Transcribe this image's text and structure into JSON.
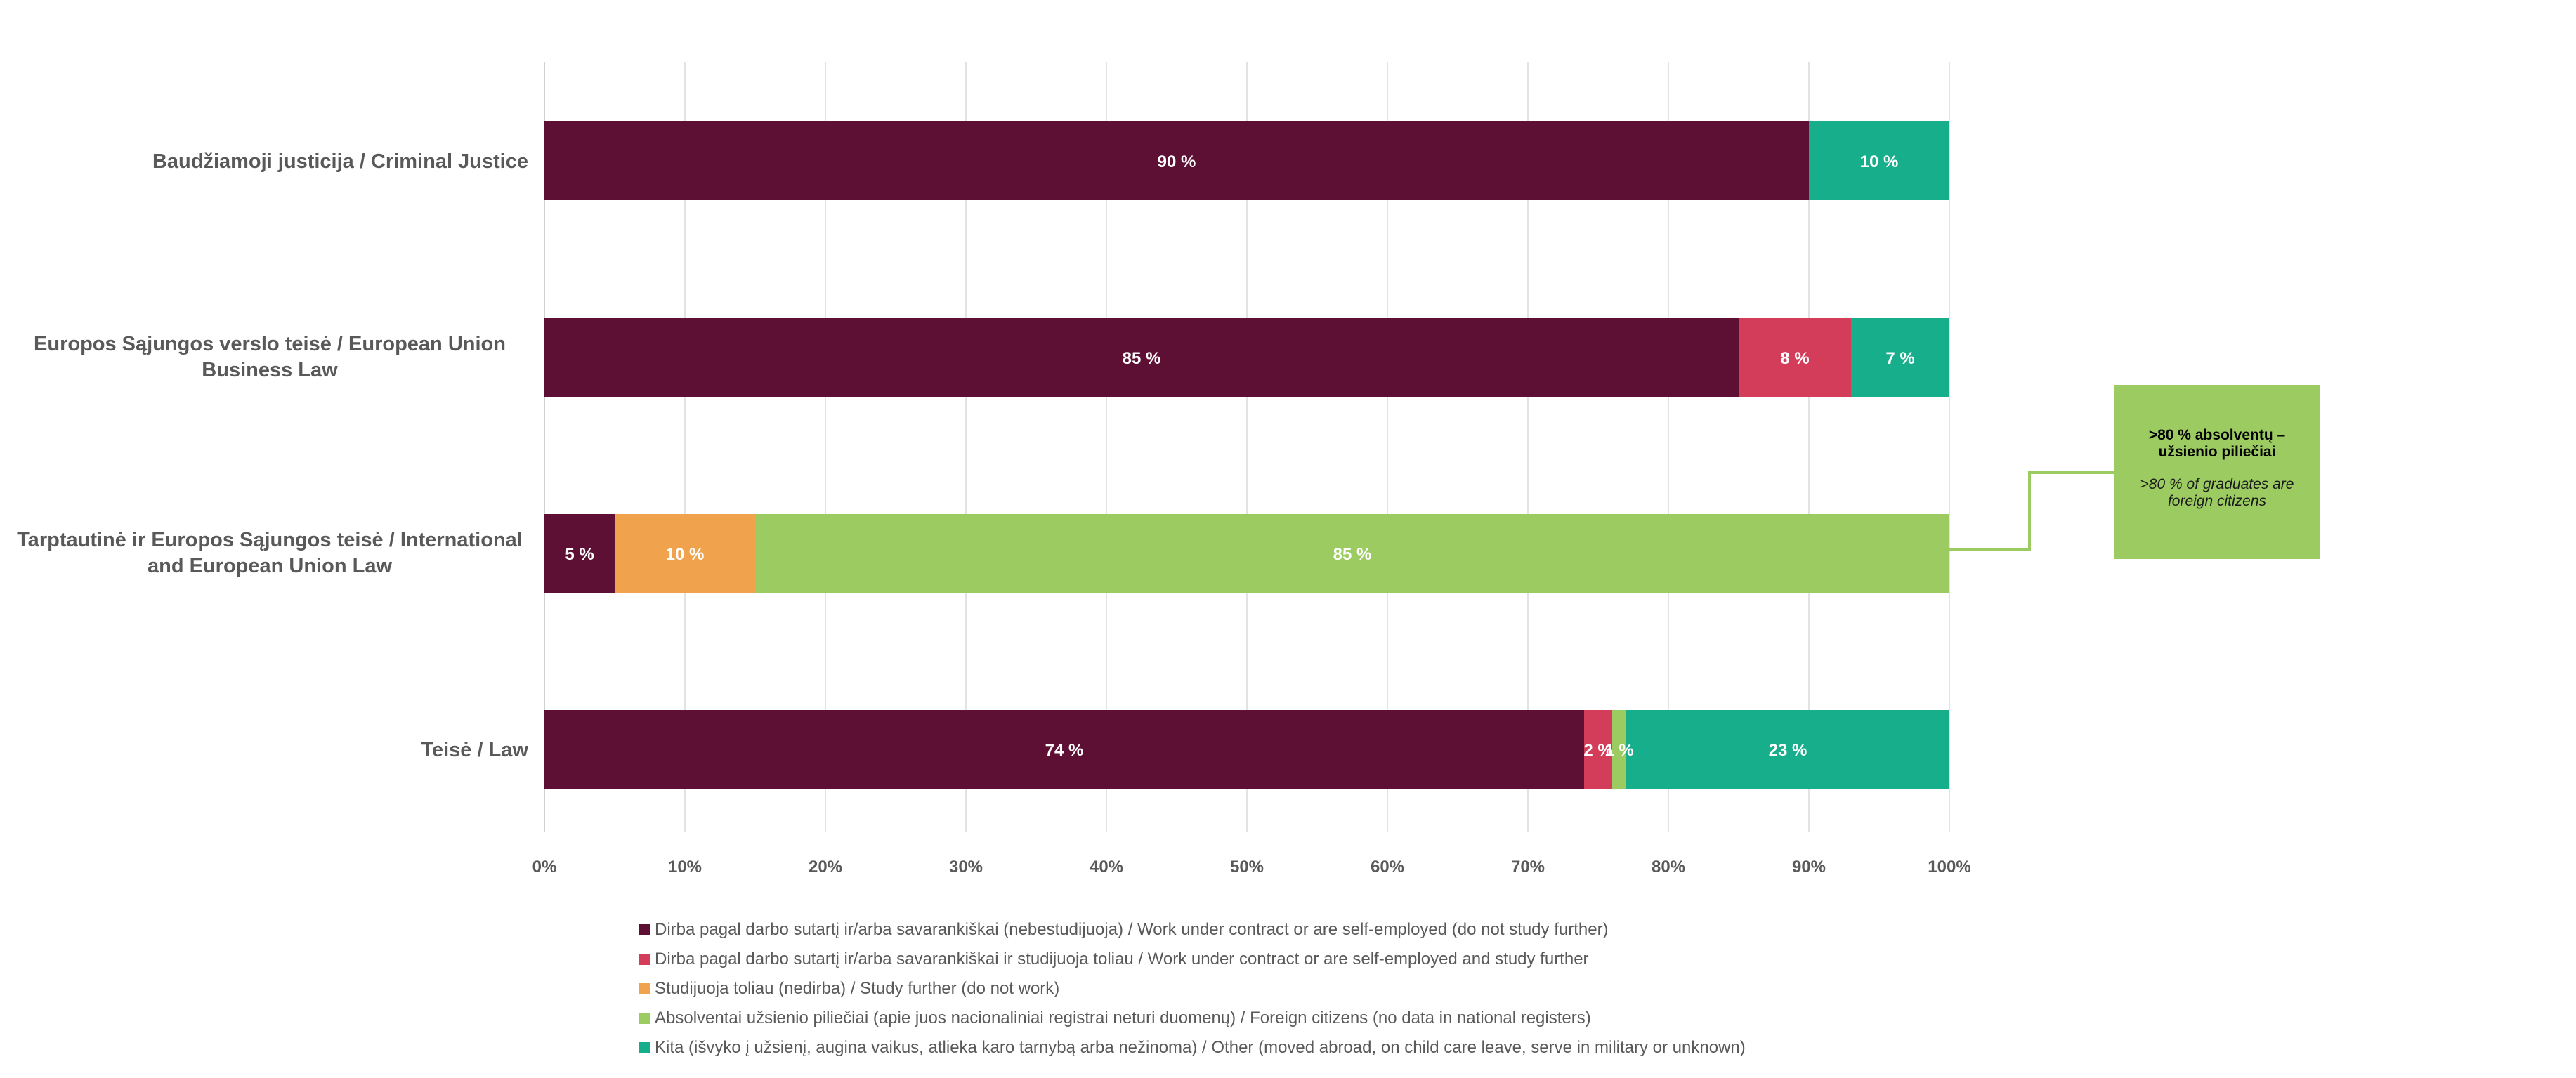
{
  "chart_data": {
    "type": "bar",
    "orientation": "horizontal",
    "stacked": "percent",
    "categories": [
      "Baudžiamoji justicija / Criminal Justice",
      "Europos Sąjungos verslo teisė / European Union Business Law",
      "Tarptautinė ir Europos Sąjungos teisė / International and European Union Law",
      "Teisė / Law"
    ],
    "series": [
      {
        "name": "Dirba pagal darbo sutartį ir/arba savarankiškai (nebestudijuoja) / Work under contract or are self-employed (do not study further)",
        "color": "#5e1034",
        "values": [
          90,
          85,
          5,
          74
        ],
        "labels": [
          "90 %",
          "85 %",
          "5 %",
          "74 %"
        ]
      },
      {
        "name": "Dirba pagal darbo sutartį ir/arba savarankiškai  ir studijuoja toliau / Work under contract or are self-employed and study further",
        "color": "#d33d5a",
        "values": [
          0,
          8,
          0,
          2
        ],
        "labels": [
          "",
          "8 %",
          "",
          "2 %"
        ]
      },
      {
        "name": "Studijuoja toliau (nedirba) / Study further (do not work)",
        "color": "#f0a24c",
        "values": [
          0,
          0,
          10,
          0
        ],
        "labels": [
          "",
          "",
          "10 %",
          ""
        ]
      },
      {
        "name": "Absolventai užsienio piliečiai (apie juos nacionaliniai registrai neturi duomenų) / Foreign citizens (no data in national registers)",
        "color": "#9ccb62",
        "values": [
          0,
          0,
          85,
          1
        ],
        "labels": [
          "",
          "",
          "85 %",
          "1 %"
        ]
      },
      {
        "name": "Kita (išvyko į užsienį, augina vaikus, atlieka karo tarnybą arba nežinoma) / Other (moved abroad, on child care leave, serve in military or unknown)",
        "color": "#17ae8c",
        "values": [
          10,
          7,
          0,
          23
        ],
        "labels": [
          "10 %",
          "7 %",
          "",
          "23 %"
        ]
      }
    ],
    "x_ticks": [
      "0%",
      "10%",
      "20%",
      "30%",
      "40%",
      "50%",
      "60%",
      "70%",
      "80%",
      "90%",
      "100%"
    ],
    "xlim": [
      0,
      100
    ],
    "grid": true,
    "legend_position": "bottom",
    "annotation": {
      "title": ">80 % absolventų – užsienio piliečiai",
      "subtitle": ">80 % of graduates are foreign citizens",
      "color": "#9ccb62",
      "points_to": "Tarptautinė ir Europos Sąjungos teisė / International and European Union Law"
    }
  }
}
